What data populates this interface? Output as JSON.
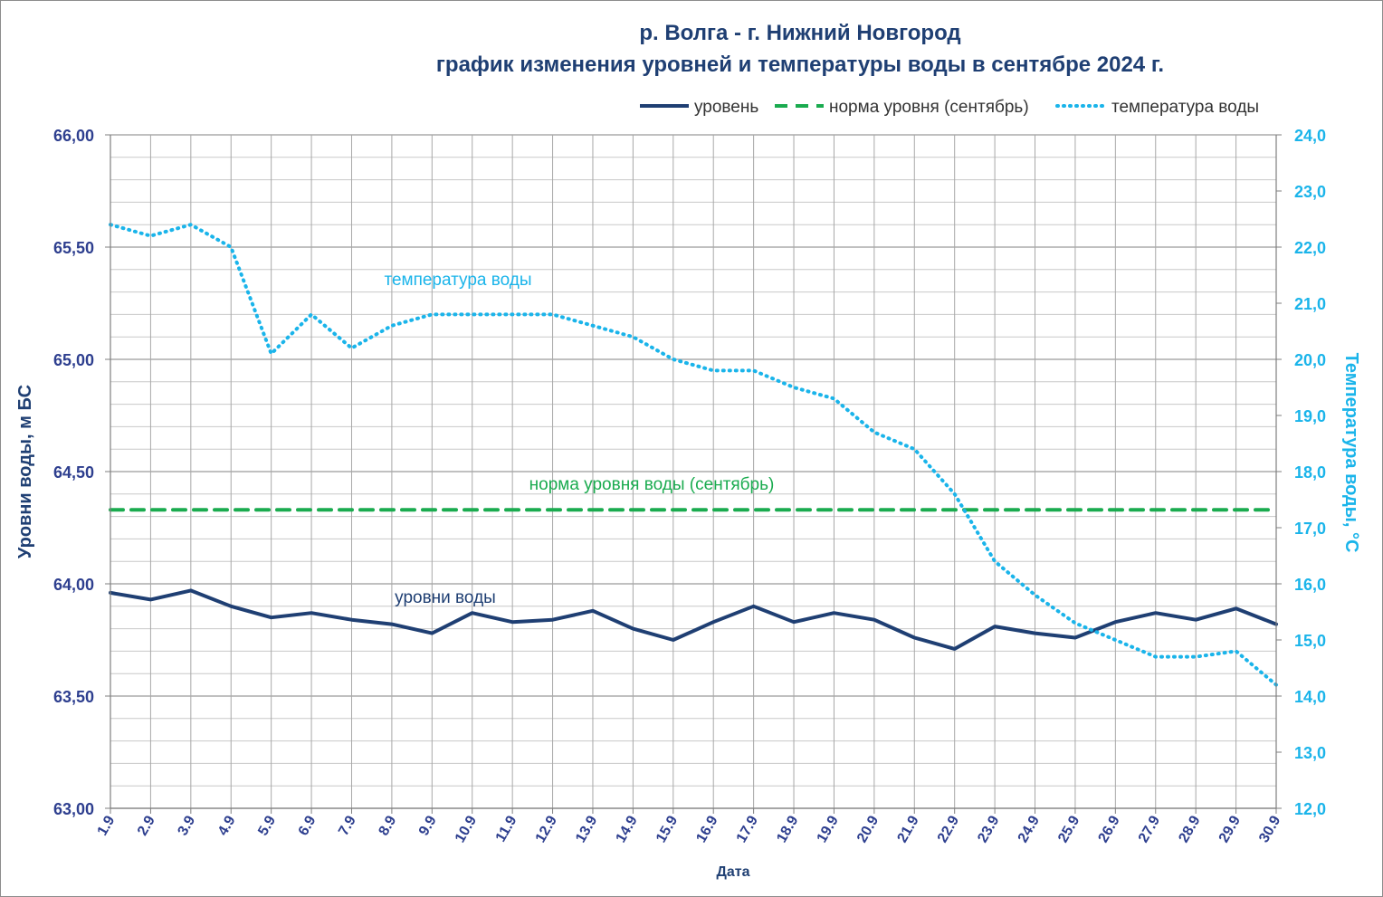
{
  "chart_data": {
    "type": "line",
    "title": "р. Волга - г. Нижний Новгород",
    "subtitle": "график изменения уровней и температуры  воды в сентябре 2024 г.",
    "xlabel": "Дата",
    "ylabel_left": "Уровни воды, м БС",
    "ylabel_right": "Температура воды, °С",
    "ylim_left": [
      63.0,
      66.0
    ],
    "ylim_right": [
      12.0,
      24.0
    ],
    "grid": true,
    "legend_position": "top-right",
    "categories": [
      "1.9",
      "2.9",
      "3.9",
      "4.9",
      "5.9",
      "6.9",
      "7.9",
      "8.9",
      "9.9",
      "10.9",
      "11.9",
      "12.9",
      "13.9",
      "14.9",
      "15.9",
      "16.9",
      "17.9",
      "18.9",
      "19.9",
      "20.9",
      "21.9",
      "22.9",
      "23.9",
      "24.9",
      "25.9",
      "26.9",
      "27.9",
      "28.9",
      "29.9",
      "30.9"
    ],
    "y_ticks_left": [
      "63,00",
      "63,50",
      "64,00",
      "64,50",
      "65,00",
      "65,50",
      "66,00"
    ],
    "y_ticks_right": [
      "12,0",
      "13,0",
      "14,0",
      "15,0",
      "16,0",
      "17,0",
      "18,0",
      "19,0",
      "20,0",
      "21,0",
      "22,0",
      "23,0",
      "24,0"
    ],
    "series": [
      {
        "name": "уровень",
        "axis": "left",
        "color": "#1f3f73",
        "style": "solid",
        "values": [
          63.96,
          63.93,
          63.97,
          63.9,
          63.85,
          63.87,
          63.84,
          63.82,
          63.78,
          63.87,
          63.83,
          63.84,
          63.88,
          63.8,
          63.75,
          63.83,
          63.9,
          63.83,
          63.87,
          63.84,
          63.76,
          63.71,
          63.81,
          63.78,
          63.76,
          63.83,
          63.87,
          63.84,
          63.89,
          63.82
        ]
      },
      {
        "name": "норма уровня (сентябрь)",
        "axis": "left",
        "color": "#1aab4f",
        "style": "dashed",
        "values": [
          64.33,
          64.33,
          64.33,
          64.33,
          64.33,
          64.33,
          64.33,
          64.33,
          64.33,
          64.33,
          64.33,
          64.33,
          64.33,
          64.33,
          64.33,
          64.33,
          64.33,
          64.33,
          64.33,
          64.33,
          64.33,
          64.33,
          64.33,
          64.33,
          64.33,
          64.33,
          64.33,
          64.33,
          64.33,
          64.33
        ]
      },
      {
        "name": "температура воды",
        "axis": "right",
        "color": "#1ab4ea",
        "style": "dotted",
        "values": [
          22.4,
          22.2,
          22.4,
          22.0,
          20.1,
          20.8,
          20.2,
          20.6,
          20.8,
          20.8,
          20.8,
          20.8,
          20.6,
          20.4,
          20.0,
          19.8,
          19.8,
          19.5,
          19.3,
          18.7,
          18.4,
          17.6,
          16.4,
          15.8,
          15.3,
          15.0,
          14.7,
          14.7,
          14.8,
          14.2
        ]
      }
    ],
    "annotations": [
      {
        "text": "температура воды",
        "color": "#1ab4ea"
      },
      {
        "text": "норма уровня воды  (сентябрь)",
        "color": "#1aab4f"
      },
      {
        "text": "уровни воды",
        "color": "#1f3f73"
      }
    ]
  }
}
